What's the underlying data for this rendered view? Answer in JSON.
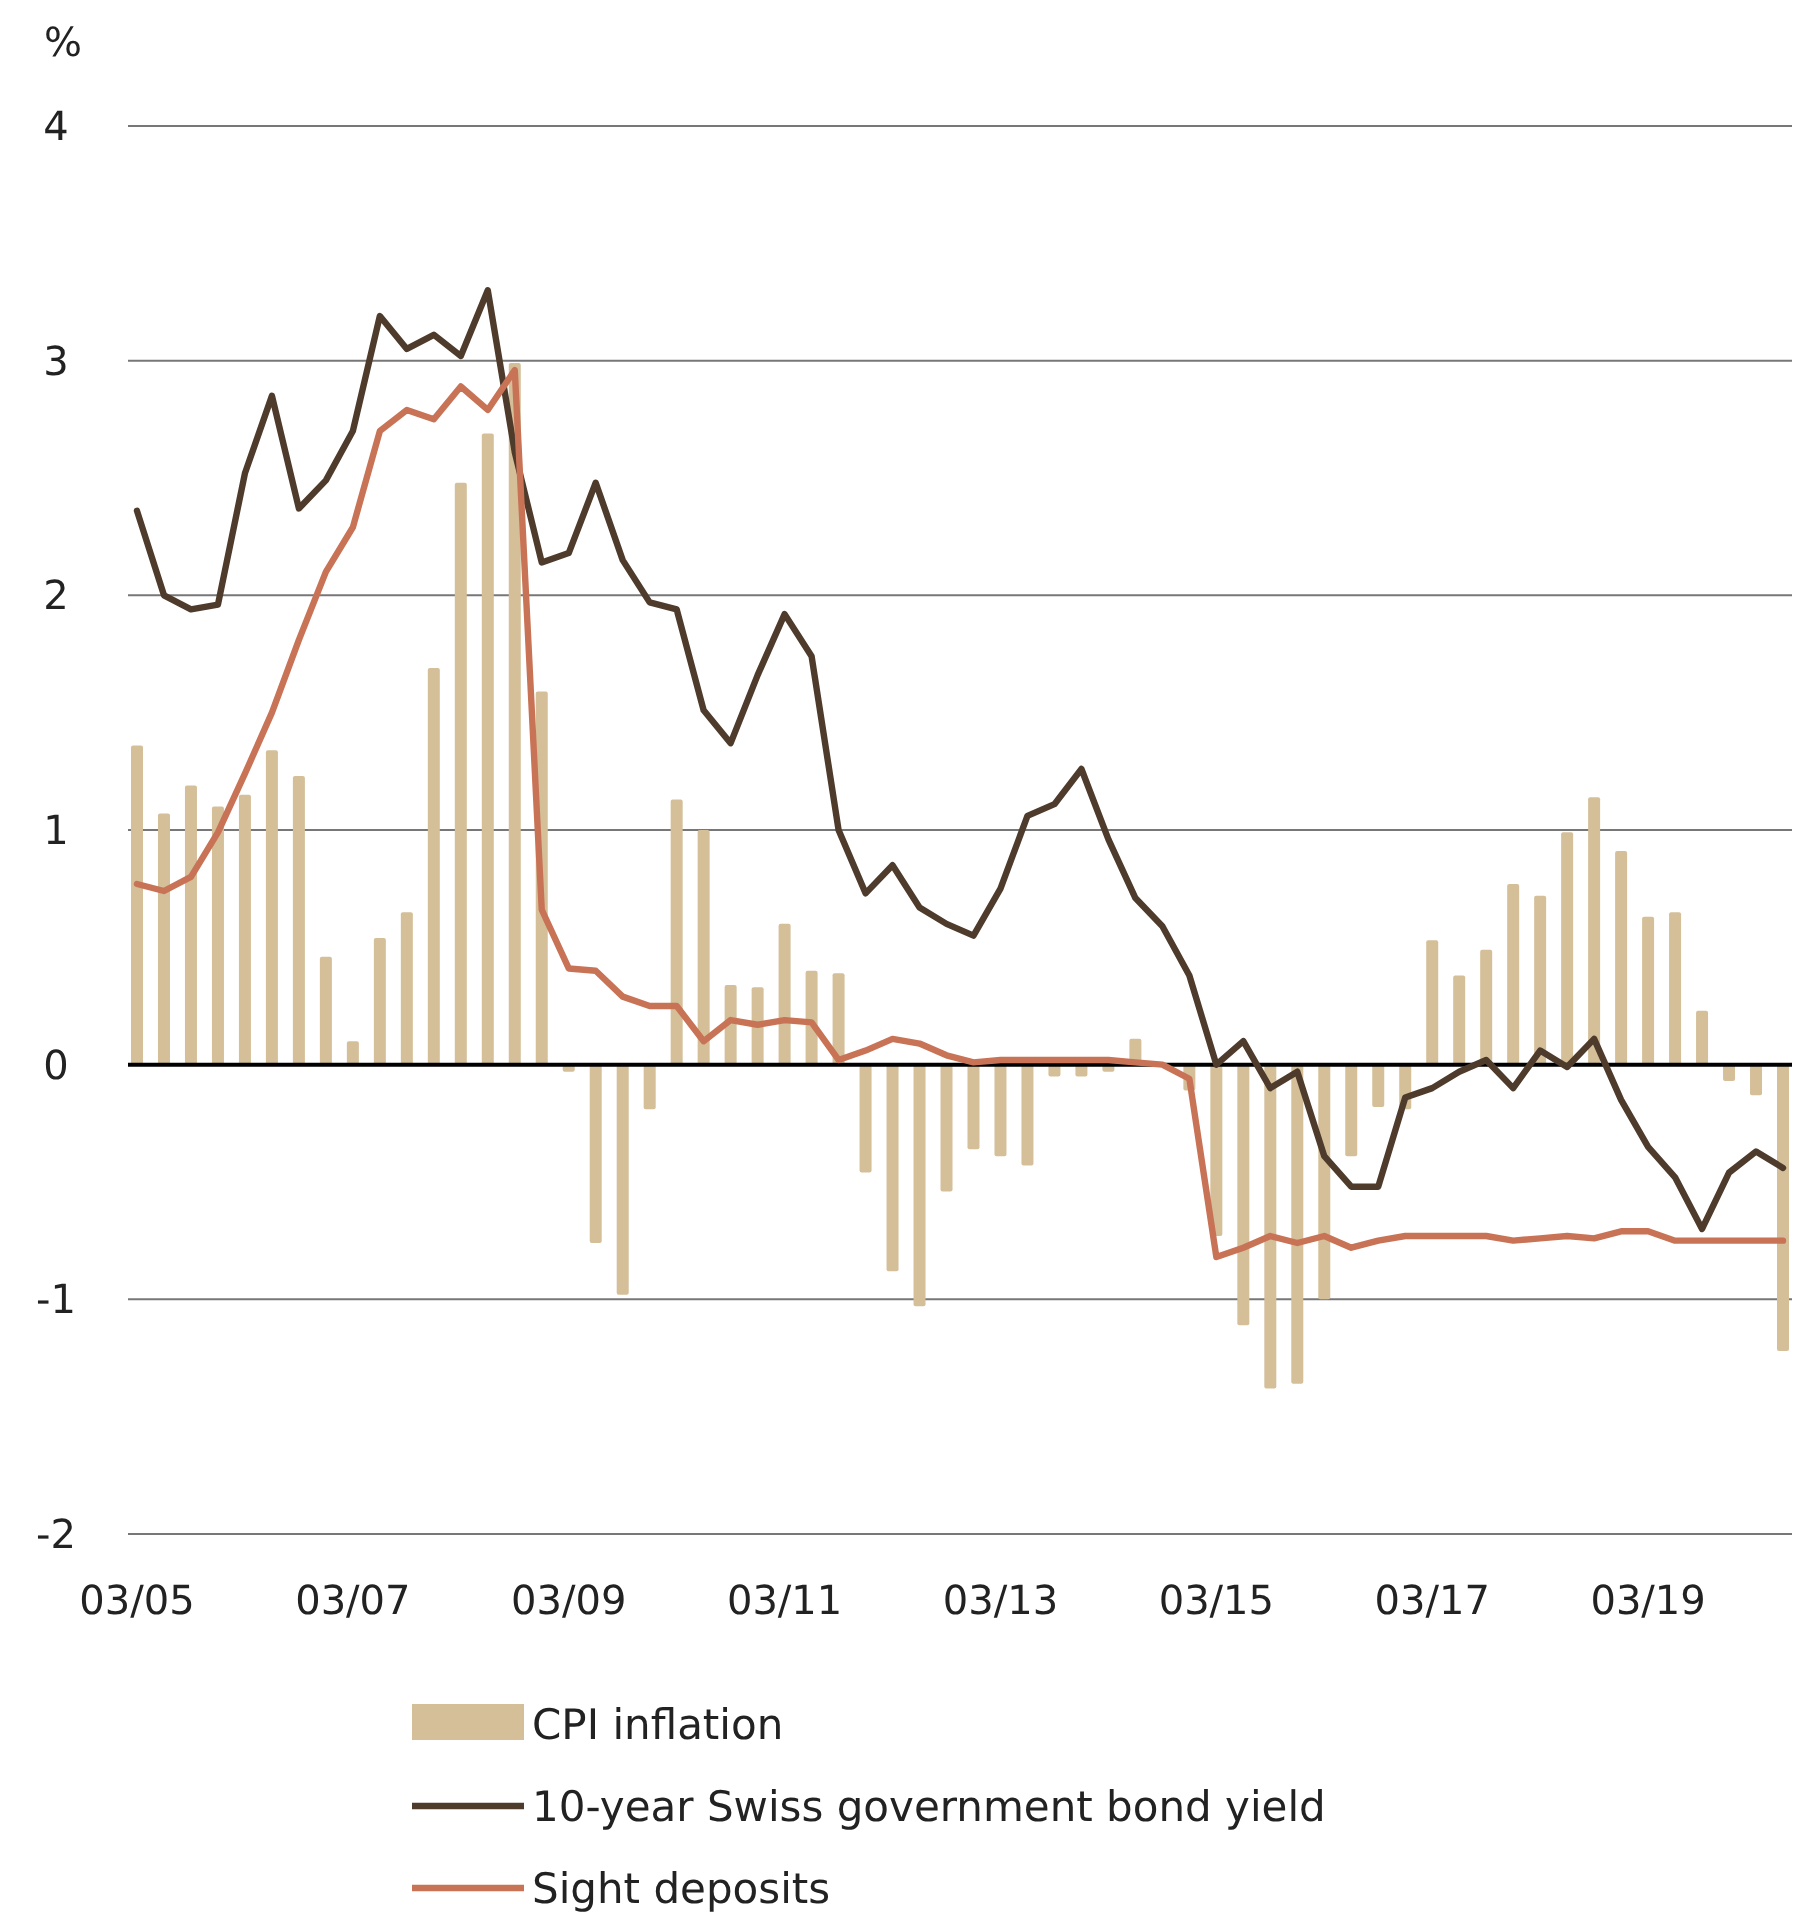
{
  "chart_data": {
    "type": "bar",
    "ylabel": "%",
    "x": [
      "2005-03",
      "2005-06",
      "2005-09",
      "2005-12",
      "2006-03",
      "2006-06",
      "2006-09",
      "2006-12",
      "2007-03",
      "2007-06",
      "2007-09",
      "2007-12",
      "2008-03",
      "2008-06",
      "2008-09",
      "2008-12",
      "2009-03",
      "2009-06",
      "2009-09",
      "2009-12",
      "2010-03",
      "2010-06",
      "2010-09",
      "2010-12",
      "2011-03",
      "2011-06",
      "2011-09",
      "2011-12",
      "2012-03",
      "2012-06",
      "2012-09",
      "2012-12",
      "2013-03",
      "2013-06",
      "2013-09",
      "2013-12",
      "2014-03",
      "2014-06",
      "2014-09",
      "2014-12",
      "2015-03",
      "2015-06",
      "2015-09",
      "2015-12",
      "2016-03",
      "2016-06",
      "2016-09",
      "2016-12",
      "2017-03",
      "2017-06",
      "2017-09",
      "2017-12",
      "2018-03",
      "2018-06",
      "2018-09",
      "2018-12",
      "2019-03",
      "2019-06",
      "2019-09",
      "2019-12",
      "2020-03",
      "2020-06"
    ],
    "series": [
      {
        "name": "CPI inflation",
        "color": "#d4bf99",
        "values": [
          1.36,
          1.07,
          1.19,
          1.1,
          1.15,
          1.34,
          1.23,
          0.46,
          0.1,
          0.54,
          0.65,
          1.69,
          2.48,
          2.69,
          2.99,
          1.59,
          -0.03,
          -0.76,
          -0.98,
          -0.19,
          1.13,
          1.0,
          0.34,
          0.33,
          0.6,
          0.4,
          0.39,
          -0.46,
          -0.88,
          -1.03,
          -0.54,
          -0.36,
          -0.39,
          -0.43,
          -0.05,
          -0.05,
          -0.03,
          0.11,
          null,
          -0.11,
          -0.73,
          -1.11,
          -1.38,
          -1.36,
          -1.0,
          -0.39,
          -0.18,
          -0.19,
          0.53,
          0.38,
          0.49,
          0.77,
          0.72,
          0.99,
          1.14,
          0.91,
          0.63,
          0.65,
          0.23,
          -0.07,
          -0.13,
          -1.22
        ]
      },
      {
        "name": "10-year Swiss government bond yield",
        "type": "line",
        "color": "#4e3b2c",
        "values": [
          2.36,
          2.0,
          1.94,
          1.96,
          2.52,
          2.85,
          2.37,
          2.49,
          2.7,
          3.19,
          3.05,
          3.11,
          3.02,
          3.3,
          2.61,
          2.14,
          2.18,
          2.48,
          2.15,
          1.97,
          1.94,
          1.51,
          1.37,
          1.66,
          1.92,
          1.74,
          1.0,
          0.73,
          0.85,
          0.67,
          0.6,
          0.55,
          0.75,
          1.06,
          1.11,
          1.26,
          0.96,
          0.71,
          0.59,
          0.38,
          0.0,
          0.1,
          -0.1,
          -0.03,
          -0.39,
          -0.52,
          -0.52,
          -0.14,
          -0.1,
          -0.03,
          0.02,
          -0.1,
          0.06,
          -0.01,
          0.11,
          -0.15,
          -0.35,
          -0.48,
          -0.7,
          -0.46,
          -0.37,
          -0.44
        ]
      },
      {
        "name": "Sight deposits",
        "type": "line",
        "color": "#c87356",
        "values": [
          0.77,
          0.74,
          0.8,
          0.99,
          1.24,
          1.5,
          1.81,
          2.1,
          2.29,
          2.7,
          2.79,
          2.75,
          2.89,
          2.79,
          2.96,
          0.66,
          0.41,
          0.4,
          0.29,
          0.25,
          0.25,
          0.1,
          0.19,
          0.17,
          0.19,
          0.18,
          0.02,
          0.06,
          0.11,
          0.09,
          0.04,
          0.01,
          0.02,
          0.02,
          0.02,
          0.02,
          0.02,
          0.01,
          0.0,
          -0.06,
          -0.82,
          -0.78,
          -0.73,
          -0.76,
          -0.73,
          -0.78,
          -0.75,
          -0.73,
          -0.73,
          -0.73,
          -0.73,
          -0.75,
          -0.74,
          -0.73,
          -0.74,
          -0.71,
          -0.71,
          -0.75,
          -0.75,
          -0.75,
          -0.75,
          -0.75
        ]
      }
    ],
    "xlim": [
      "2005-02",
      "2020-07"
    ],
    "xticks": [
      {
        "value": "2005-03",
        "label": "03/05"
      },
      {
        "value": "2007-03",
        "label": "03/07"
      },
      {
        "value": "2009-03",
        "label": "03/09"
      },
      {
        "value": "2011-03",
        "label": "03/11"
      },
      {
        "value": "2013-03",
        "label": "03/13"
      },
      {
        "value": "2015-03",
        "label": "03/15"
      },
      {
        "value": "2017-03",
        "label": "03/17"
      },
      {
        "value": "2019-03",
        "label": "03/19"
      }
    ],
    "ylim": [
      -2,
      4
    ],
    "yticks": [
      -2,
      -1,
      0,
      1,
      2,
      3,
      4
    ],
    "grid": "y",
    "legend": "bottom"
  }
}
